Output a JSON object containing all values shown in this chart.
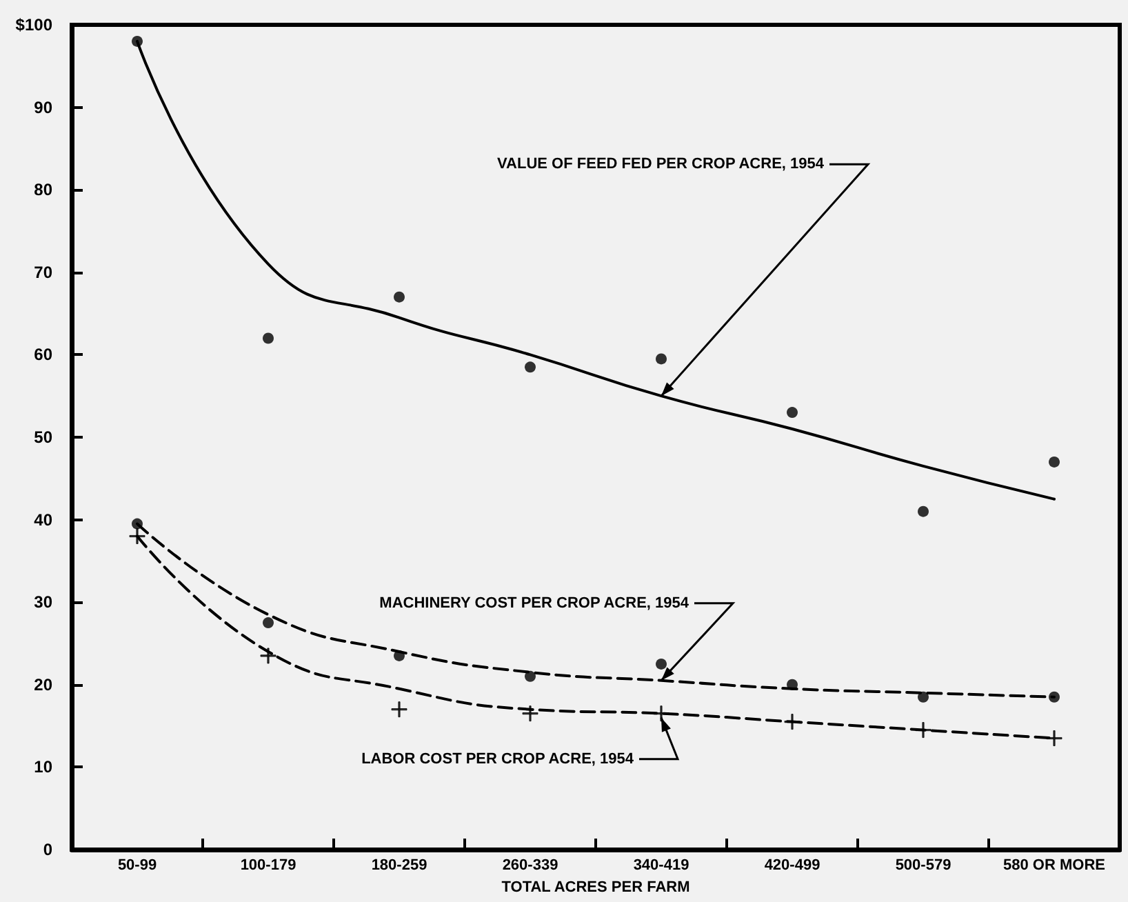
{
  "chart_data": {
    "type": "scatter",
    "xlabel": "TOTAL ACRES PER FARM",
    "categories": [
      "50-99",
      "100-179",
      "180-259",
      "260-339",
      "340-419",
      "420-499",
      "500-579",
      "580 OR MORE"
    ],
    "ylim": [
      0,
      100
    ],
    "yticks": [
      0,
      10,
      20,
      30,
      40,
      50,
      60,
      70,
      80,
      90,
      {
        "value": 100,
        "label": "$100"
      }
    ],
    "grid": false,
    "series": [
      {
        "type": "line",
        "color": "#000000",
        "line_style": "solid",
        "marker": "none",
        "values": [
          98,
          71,
          64.5,
          60,
          55,
          51,
          46.5,
          42.5
        ]
      },
      {
        "type": "line",
        "color": "#000000",
        "line_style": "dashed",
        "marker": "none",
        "values": [
          39.5,
          28.5,
          24,
          21.5,
          20.5,
          19.5,
          19,
          18.5
        ]
      },
      {
        "type": "line",
        "color": "#000000",
        "line_style": "dashed",
        "marker": "none",
        "values": [
          38,
          24,
          19.5,
          17,
          16.5,
          15.5,
          14.5,
          13.5
        ]
      },
      {
        "color": "#000000",
        "marker": "circle",
        "values": [
          98,
          62,
          67,
          58.5,
          59.5,
          53,
          41,
          47
        ]
      },
      {
        "color": "#000000",
        "marker": "circle",
        "values": [
          39.5,
          27.5,
          23.5,
          21,
          22.5,
          20,
          18.5,
          18.5
        ]
      },
      {
        "color": "#000000",
        "marker": "cross",
        "values": [
          38,
          23.5,
          17,
          16.5,
          16.5,
          15.5,
          14.5,
          13.5
        ]
      }
    ],
    "annotations": [
      {
        "text": "VALUE OF FEED FED PER CROP ACRE, 1954",
        "x": "340-419",
        "y": 55
      },
      {
        "text": "MACHINERY COST PER CROP ACRE, 1954",
        "x": "340-419",
        "y": 20.5
      },
      {
        "text": "LABOR COST PER CROP ACRE, 1954",
        "x": "340-419",
        "y": 16
      }
    ]
  }
}
